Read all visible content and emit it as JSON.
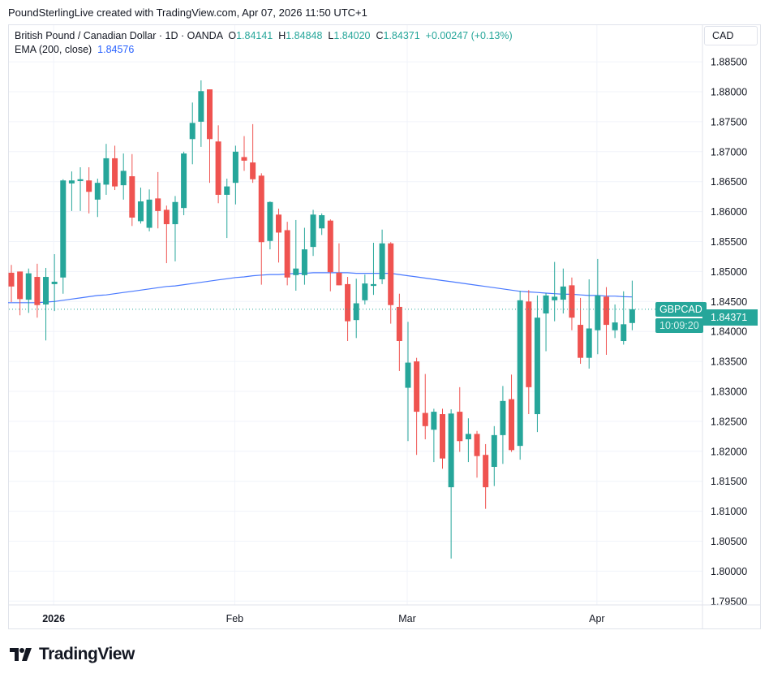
{
  "credit": "PoundSterlingLive created with TradingView.com, Apr 07, 2026 11:50 UTC+1",
  "legend": {
    "symbol": "British Pound / Canadian Dollar · 1D · OANDA",
    "o_label": "O",
    "o": "1.84141",
    "h_label": "H",
    "h": "1.84848",
    "l_label": "L",
    "l": "1.84020",
    "c_label": "C",
    "c": "1.84371",
    "change": "+0.00247 (+0.13%)",
    "ema_label": "EMA (200, close)",
    "ema_value": "1.84576"
  },
  "currency": "CAD",
  "last_price": {
    "symbol": "GBPCAD",
    "price": "1.84371",
    "countdown": "10:09:20"
  },
  "logo": "TradingView",
  "colors": {
    "up": "#26a69a",
    "down": "#ef5350",
    "ema": "#2962ff",
    "grid": "#f0f3fa"
  },
  "chart_data": {
    "type": "candlestick",
    "title": "British Pound / Canadian Dollar · 1D · OANDA",
    "ylim": [
      1.7925,
      1.8895
    ],
    "yticks": [
      "1.88500",
      "1.88000",
      "1.87500",
      "1.87000",
      "1.86500",
      "1.86000",
      "1.85500",
      "1.85000",
      "1.84500",
      "1.84000",
      "1.83500",
      "1.83000",
      "1.82500",
      "1.82000",
      "1.81500",
      "1.81000",
      "1.80500",
      "1.80000",
      "1.79500"
    ],
    "xticks": [
      {
        "label": "2026",
        "index": 5,
        "bold": true
      },
      {
        "label": "Feb",
        "index": 26
      },
      {
        "label": "Mar",
        "index": 46
      },
      {
        "label": "Apr",
        "index": 68
      }
    ],
    "grid": true,
    "ohlc": [
      [
        1.8498,
        1.8511,
        1.8449,
        1.8475
      ],
      [
        1.85,
        1.85,
        1.8427,
        1.8454
      ],
      [
        1.8453,
        1.8505,
        1.8431,
        1.8497
      ],
      [
        1.8491,
        1.8513,
        1.8423,
        1.8444
      ],
      [
        1.8445,
        1.8506,
        1.8385,
        1.8491
      ],
      [
        1.8479,
        1.8529,
        1.8434,
        1.8483
      ],
      [
        1.849,
        1.8654,
        1.8463,
        1.8652
      ],
      [
        1.8647,
        1.8667,
        1.8601,
        1.8652
      ],
      [
        1.8651,
        1.8674,
        1.8601,
        1.8654
      ],
      [
        1.8652,
        1.8674,
        1.8597,
        1.8633
      ],
      [
        1.862,
        1.8655,
        1.8591,
        1.8648
      ],
      [
        1.8645,
        1.8713,
        1.8628,
        1.8689
      ],
      [
        1.8689,
        1.871,
        1.8636,
        1.8642
      ],
      [
        1.8644,
        1.8697,
        1.862,
        1.8668
      ],
      [
        1.8659,
        1.8696,
        1.8576,
        1.859
      ],
      [
        1.8584,
        1.864,
        1.858,
        1.8617
      ],
      [
        1.8573,
        1.8637,
        1.8567,
        1.862
      ],
      [
        1.8622,
        1.8666,
        1.8572,
        1.8601
      ],
      [
        1.8603,
        1.861,
        1.8514,
        1.8579
      ],
      [
        1.8579,
        1.8626,
        1.8517,
        1.8616
      ],
      [
        1.8606,
        1.87,
        1.8594,
        1.8697
      ],
      [
        1.8721,
        1.8782,
        1.8679,
        1.8748
      ],
      [
        1.875,
        1.8819,
        1.8708,
        1.8801
      ],
      [
        1.8804,
        1.8804,
        1.8648,
        1.8721
      ],
      [
        1.8717,
        1.8744,
        1.8614,
        1.8628
      ],
      [
        1.8628,
        1.8655,
        1.8556,
        1.8642
      ],
      [
        1.8648,
        1.871,
        1.8612,
        1.87
      ],
      [
        1.8691,
        1.8726,
        1.8668,
        1.8685
      ],
      [
        1.8682,
        1.8746,
        1.8648,
        1.8654
      ],
      [
        1.866,
        1.8664,
        1.8478,
        1.8549
      ],
      [
        1.8551,
        1.8617,
        1.8537,
        1.8616
      ],
      [
        1.8595,
        1.8605,
        1.8515,
        1.8565
      ],
      [
        1.8569,
        1.8583,
        1.8477,
        1.849
      ],
      [
        1.8494,
        1.8586,
        1.8468,
        1.8505
      ],
      [
        1.8494,
        1.8573,
        1.8478,
        1.8537
      ],
      [
        1.8541,
        1.8603,
        1.8526,
        1.8595
      ],
      [
        1.8572,
        1.8597,
        1.8561,
        1.8594
      ],
      [
        1.8585,
        1.8587,
        1.8467,
        1.8499
      ],
      [
        1.8498,
        1.8547,
        1.8477,
        1.8477
      ],
      [
        1.8479,
        1.8491,
        1.8384,
        1.8417
      ],
      [
        1.8419,
        1.8488,
        1.8389,
        1.8447
      ],
      [
        1.8452,
        1.8495,
        1.8445,
        1.848
      ],
      [
        1.8476,
        1.8548,
        1.8461,
        1.8479
      ],
      [
        1.8487,
        1.857,
        1.8479,
        1.8547
      ],
      [
        1.8547,
        1.8549,
        1.8413,
        1.8444
      ],
      [
        1.8441,
        1.8463,
        1.8334,
        1.8384
      ],
      [
        1.8306,
        1.8416,
        1.8217,
        1.8348
      ],
      [
        1.835,
        1.8356,
        1.8194,
        1.8266
      ],
      [
        1.8264,
        1.8329,
        1.822,
        1.8242
      ],
      [
        1.8236,
        1.8271,
        1.8182,
        1.8266
      ],
      [
        1.8262,
        1.8271,
        1.8171,
        1.8188
      ],
      [
        1.814,
        1.827,
        1.8021,
        1.8263
      ],
      [
        1.8266,
        1.8307,
        1.8199,
        1.8217
      ],
      [
        1.822,
        1.8255,
        1.8182,
        1.8229
      ],
      [
        1.8229,
        1.8234,
        1.8156,
        1.8192
      ],
      [
        1.8194,
        1.8212,
        1.8104,
        1.814
      ],
      [
        1.8174,
        1.8242,
        1.8142,
        1.8227
      ],
      [
        1.8227,
        1.8309,
        1.8179,
        1.8284
      ],
      [
        1.8287,
        1.8328,
        1.8199,
        1.8202
      ],
      [
        1.8209,
        1.8468,
        1.8186,
        1.8452
      ],
      [
        1.845,
        1.8469,
        1.8262,
        1.8307
      ],
      [
        1.8262,
        1.846,
        1.8232,
        1.8423
      ],
      [
        1.843,
        1.8464,
        1.8367,
        1.846
      ],
      [
        1.8452,
        1.8516,
        1.8417,
        1.8458
      ],
      [
        1.8453,
        1.8505,
        1.843,
        1.8475
      ],
      [
        1.8477,
        1.849,
        1.8402,
        1.8423
      ],
      [
        1.8411,
        1.8456,
        1.8346,
        1.8356
      ],
      [
        1.8356,
        1.8487,
        1.8338,
        1.8405
      ],
      [
        1.8402,
        1.8521,
        1.8362,
        1.846
      ],
      [
        1.8458,
        1.8474,
        1.8361,
        1.8411
      ],
      [
        1.8402,
        1.8445,
        1.8389,
        1.8415
      ],
      [
        1.8384,
        1.8467,
        1.8378,
        1.8412
      ],
      [
        1.84141,
        1.84848,
        1.8402,
        1.84371
      ]
    ],
    "ema": [
      1.8448,
      1.8448,
      1.8448,
      1.8448,
      1.8449,
      1.845,
      1.8452,
      1.8454,
      1.8456,
      1.8458,
      1.846,
      1.8461,
      1.8463,
      1.8465,
      1.8467,
      1.8469,
      1.8471,
      1.8473,
      1.8475,
      1.8476,
      1.8478,
      1.848,
      1.8482,
      1.8484,
      1.8486,
      1.8488,
      1.849,
      1.8491,
      1.8493,
      1.8494,
      1.8495,
      1.8495,
      1.8496,
      1.8497,
      1.8497,
      1.8498,
      1.8498,
      1.8498,
      1.8498,
      1.8498,
      1.8497,
      1.8497,
      1.8497,
      1.8497,
      1.8497,
      1.8495,
      1.8493,
      1.8491,
      1.8489,
      1.8487,
      1.8485,
      1.8483,
      1.8481,
      1.8479,
      1.8477,
      1.8475,
      1.8473,
      1.8471,
      1.8469,
      1.8467,
      1.8466,
      1.8465,
      1.8464,
      1.8463,
      1.8462,
      1.8462,
      1.8461,
      1.846,
      1.846,
      1.8459,
      1.8459,
      1.8458,
      1.84576
    ]
  }
}
